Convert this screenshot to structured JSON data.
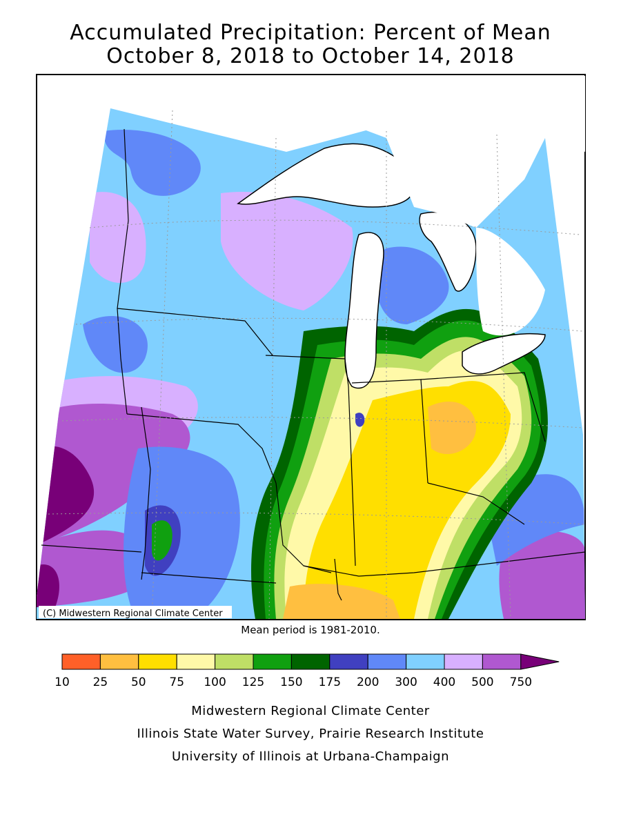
{
  "title": {
    "line1": "Accumulated Precipitation: Percent of Mean",
    "line2": "October 8, 2018 to October 14, 2018"
  },
  "copyright": "(C) Midwestern Regional Climate Center",
  "mean_period_note": "Mean period is 1981-2010.",
  "legend": {
    "bins": [
      {
        "label": "10",
        "color": "#ff6028"
      },
      {
        "label": "25",
        "color": "#ffbf40"
      },
      {
        "label": "50",
        "color": "#ffdf00"
      },
      {
        "label": "75",
        "color": "#fff9a8"
      },
      {
        "label": "100",
        "color": "#bfdf66"
      },
      {
        "label": "125",
        "color": "#10a010"
      },
      {
        "label": "150",
        "color": "#006400"
      },
      {
        "label": "175",
        "color": "#4040c0"
      },
      {
        "label": "200",
        "color": "#6088f8"
      },
      {
        "label": "300",
        "color": "#80d0ff"
      },
      {
        "label": "400",
        "color": "#d8b0ff"
      },
      {
        "label": "500",
        "color": "#b058d0"
      },
      {
        "label": "750",
        "color": "#780078"
      }
    ]
  },
  "credits": [
    "Midwestern Regional Climate Center",
    "Illinois State Water Survey, Prairie Research Institute",
    "University of Illinois at Urbana-Champaign"
  ]
}
